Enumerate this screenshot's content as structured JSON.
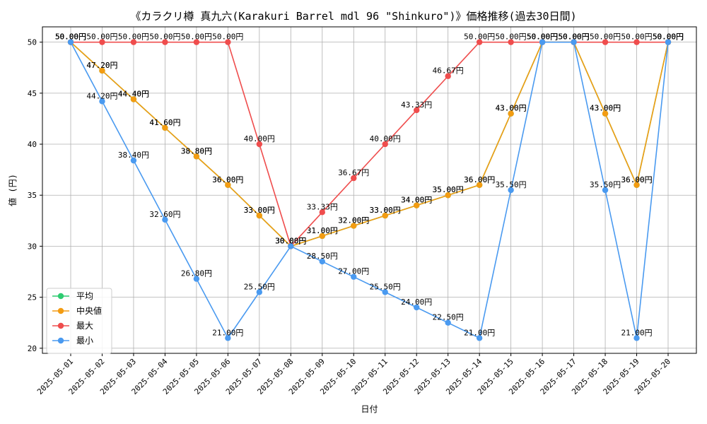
{
  "chart_data": {
    "type": "line",
    "title": "《カラクリ樽 真九六(Karakuri Barrel mdl 96 \"Shinkuro\")》価格推移(過去30日間)",
    "xlabel": "日付",
    "ylabel": "値 (円)",
    "ylim": [
      19.5,
      51.5
    ],
    "yticks": [
      20,
      25,
      30,
      35,
      40,
      45,
      50
    ],
    "grid": true,
    "legend_position": "lower-left",
    "label_suffix": "円",
    "categories": [
      "2025-05-01",
      "2025-05-02",
      "2025-05-03",
      "2025-05-04",
      "2025-05-05",
      "2025-05-06",
      "2025-05-07",
      "2025-05-08",
      "2025-05-09",
      "2025-05-10",
      "2025-05-11",
      "2025-05-12",
      "2025-05-13",
      "2025-05-14",
      "2025-05-15",
      "2025-05-16",
      "2025-05-17",
      "2025-05-18",
      "2025-05-19",
      "2025-05-20"
    ],
    "series": [
      {
        "name": "平均",
        "color": "#2ecc71",
        "values": [
          50.0,
          47.2,
          44.4,
          41.6,
          38.8,
          36.0,
          33.0,
          30.0,
          31.0,
          32.0,
          33.0,
          34.0,
          35.0,
          36.0,
          43.0,
          50.0,
          50.0,
          43.0,
          36.0,
          50.0
        ]
      },
      {
        "name": "中央値",
        "color": "#f39c12",
        "values": [
          50.0,
          47.2,
          44.4,
          41.6,
          38.8,
          36.0,
          33.0,
          30.0,
          31.0,
          32.0,
          33.0,
          34.0,
          35.0,
          36.0,
          43.0,
          50.0,
          50.0,
          43.0,
          36.0,
          50.0
        ]
      },
      {
        "name": "最大",
        "color": "#ef4d4d",
        "values": [
          50.0,
          50.0,
          50.0,
          50.0,
          50.0,
          50.0,
          40.0,
          30.0,
          33.33,
          36.67,
          40.0,
          43.33,
          46.67,
          50.0,
          50.0,
          50.0,
          50.0,
          50.0,
          50.0,
          50.0
        ]
      },
      {
        "name": "最小",
        "color": "#4a9af0",
        "values": [
          50.0,
          44.2,
          38.4,
          32.6,
          26.8,
          21.0,
          25.5,
          30.0,
          28.5,
          27.0,
          25.5,
          24.0,
          22.5,
          21.0,
          35.5,
          50.0,
          50.0,
          35.5,
          21.0,
          50.0
        ]
      }
    ]
  }
}
